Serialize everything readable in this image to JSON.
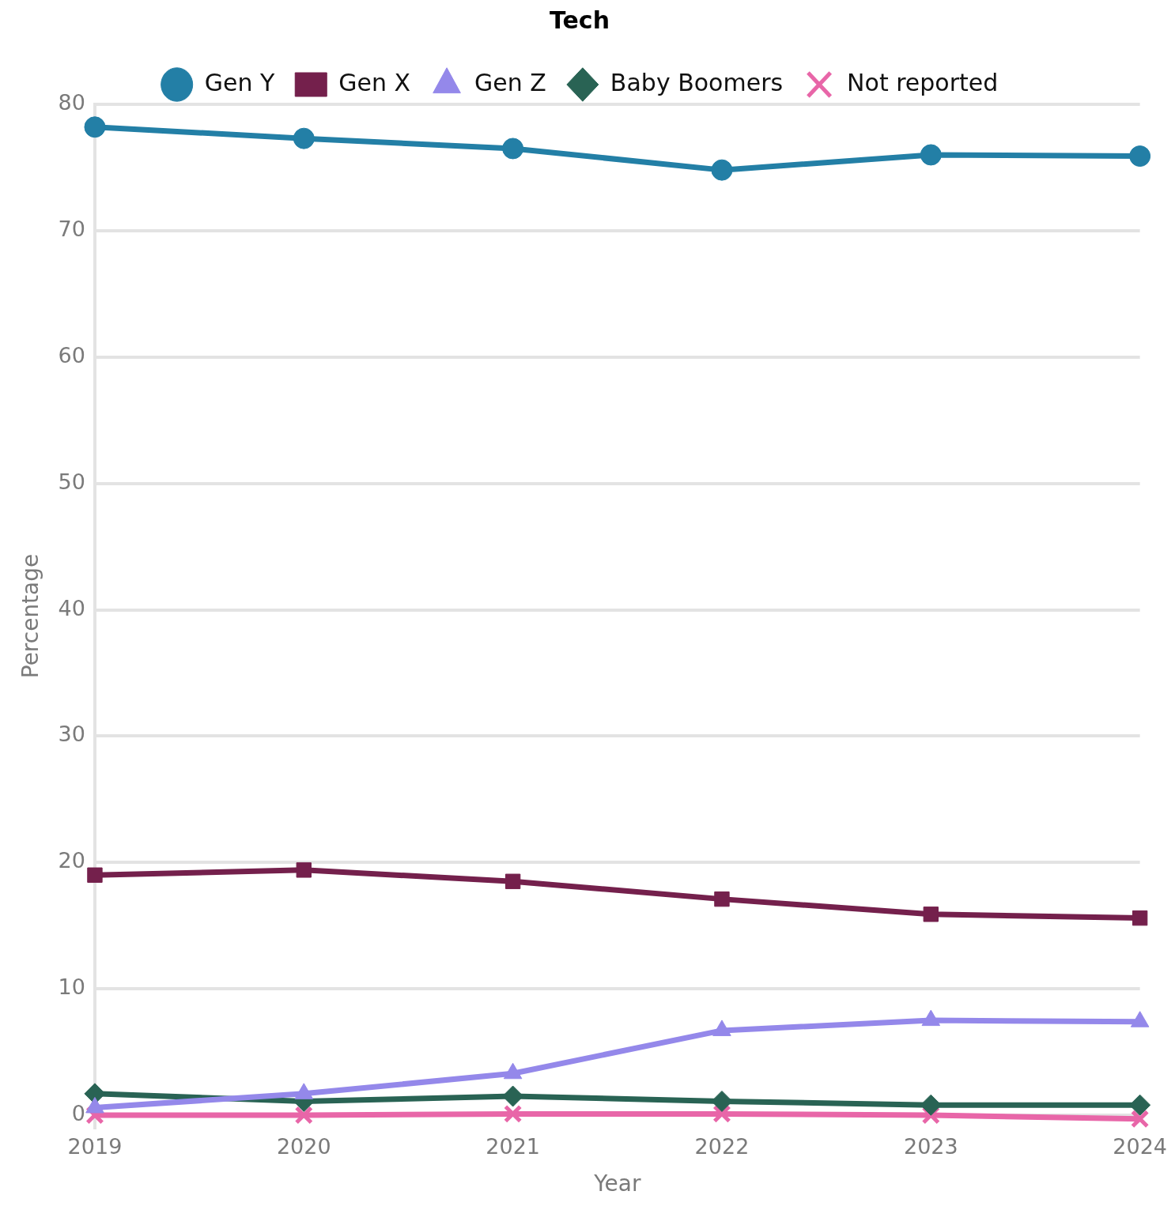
{
  "chart_data": {
    "type": "line",
    "title": "Tech",
    "xlabel": "Year",
    "ylabel": "Percentage",
    "categories": [
      "2019",
      "2020",
      "2021",
      "2022",
      "2023",
      "2024"
    ],
    "series": [
      {
        "name": "Gen Y",
        "color": "#237fa6",
        "marker": "circle",
        "values": [
          78.2,
          77.3,
          76.5,
          74.8,
          76.0,
          75.9
        ]
      },
      {
        "name": "Gen X",
        "color": "#74204c",
        "marker": "square",
        "values": [
          19.0,
          19.4,
          18.5,
          17.1,
          15.9,
          15.6
        ]
      },
      {
        "name": "Gen Z",
        "color": "#9488ea",
        "marker": "triangle",
        "values": [
          0.6,
          1.7,
          3.3,
          6.7,
          7.5,
          7.4
        ]
      },
      {
        "name": "Baby Boomers",
        "color": "#296354",
        "marker": "diamond",
        "values": [
          1.7,
          1.1,
          1.5,
          1.1,
          0.8,
          0.8
        ]
      },
      {
        "name": "Not reported",
        "color": "#e866a8",
        "marker": "cross",
        "values": [
          0.0,
          0.0,
          0.1,
          0.1,
          0.0,
          -0.3
        ]
      }
    ],
    "ylim": [
      -1,
      80
    ],
    "yticks": [
      0,
      10,
      20,
      30,
      40,
      50,
      60,
      70,
      80
    ],
    "grid": "y",
    "legend": "top",
    "line_style": "solid"
  }
}
